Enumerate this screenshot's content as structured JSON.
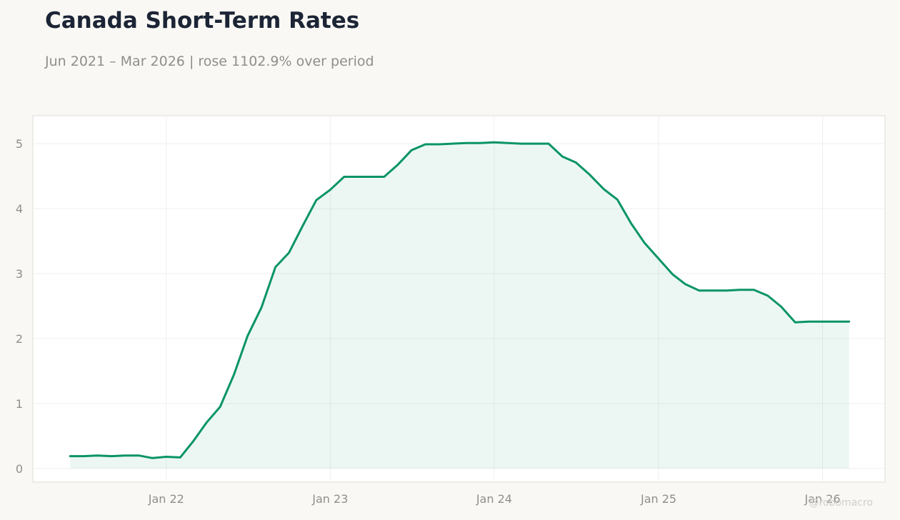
{
  "title": "Canada Short-Term Rates",
  "subtitle": "Jun 2021 – Mar 2026 | rose 1102.9% over period",
  "watermark": "@robomacro",
  "colors": {
    "line": "#0a9467",
    "fill": "#0a9467",
    "background": "#f9f8f4",
    "plot_background": "#ffffff",
    "grid": "#efefec",
    "axis_text": "#8f8f8a",
    "title": "#1c2536"
  },
  "chart_data": {
    "type": "area",
    "x_start": "2021-06",
    "x_step": "1 month",
    "x": [
      "2021-06",
      "2021-07",
      "2021-08",
      "2021-09",
      "2021-10",
      "2021-11",
      "2021-12",
      "2022-01",
      "2022-02",
      "2022-03",
      "2022-04",
      "2022-05",
      "2022-06",
      "2022-07",
      "2022-08",
      "2022-09",
      "2022-10",
      "2022-11",
      "2022-12",
      "2023-01",
      "2023-02",
      "2023-03",
      "2023-04",
      "2023-05",
      "2023-06",
      "2023-07",
      "2023-08",
      "2023-09",
      "2023-10",
      "2023-11",
      "2023-12",
      "2024-01",
      "2024-02",
      "2024-03",
      "2024-04",
      "2024-05",
      "2024-06",
      "2024-07",
      "2024-08",
      "2024-09",
      "2024-10",
      "2024-11",
      "2024-12",
      "2025-01",
      "2025-02",
      "2025-03",
      "2025-04",
      "2025-05",
      "2025-06",
      "2025-07",
      "2025-08",
      "2025-09",
      "2025-10",
      "2025-11",
      "2025-12",
      "2026-01",
      "2026-02",
      "2026-03"
    ],
    "values": [
      0.19,
      0.19,
      0.2,
      0.19,
      0.2,
      0.2,
      0.16,
      0.18,
      0.17,
      0.41,
      0.71,
      0.95,
      1.45,
      2.04,
      2.48,
      3.1,
      3.32,
      3.74,
      4.13,
      4.29,
      4.49,
      4.49,
      4.49,
      4.49,
      4.68,
      4.9,
      4.99,
      4.99,
      5.0,
      5.01,
      5.01,
      5.02,
      5.01,
      5.0,
      5.0,
      5.0,
      4.8,
      4.71,
      4.52,
      4.3,
      4.14,
      3.77,
      3.47,
      3.23,
      2.99,
      2.84,
      2.74,
      2.74,
      2.74,
      2.75,
      2.75,
      2.66,
      2.49,
      2.25,
      2.26,
      2.26,
      2.26,
      2.26
    ],
    "x_ticks": [
      {
        "date": "2022-01",
        "label": "Jan 22"
      },
      {
        "date": "2023-01",
        "label": "Jan 23"
      },
      {
        "date": "2024-01",
        "label": "Jan 24"
      },
      {
        "date": "2025-01",
        "label": "Jan 25"
      },
      {
        "date": "2026-01",
        "label": "Jan 26"
      }
    ],
    "y_ticks": [
      0,
      1,
      2,
      3,
      4,
      5
    ],
    "ylim": [
      -0.21,
      5.43
    ],
    "xlim": [
      "2021-03-10",
      "2026-05-20"
    ],
    "grid": true,
    "legend": "none"
  }
}
